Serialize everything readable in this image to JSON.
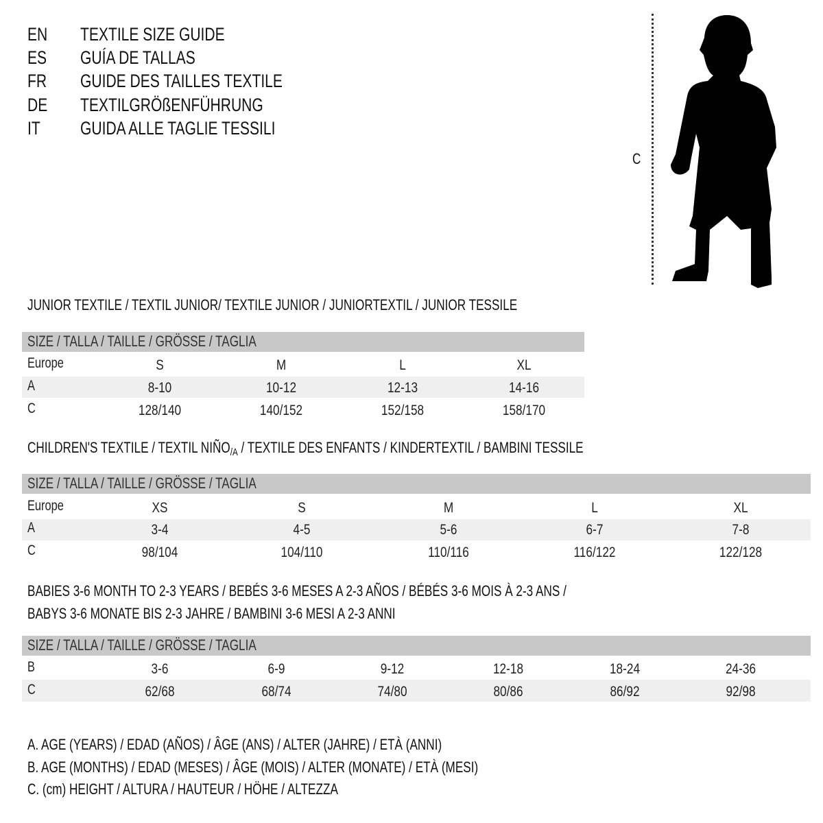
{
  "languages": [
    {
      "code": "EN",
      "title": "TEXTILE SIZE GUIDE"
    },
    {
      "code": "ES",
      "title": "GUÍA DE TALLAS"
    },
    {
      "code": "FR",
      "title": "GUIDE DES TAILLES TEXTILE"
    },
    {
      "code": "DE",
      "title": "TEXTILGRÖßENFÜHRUNG"
    },
    {
      "code": "IT",
      "title": "GUIDA ALLE TAGLIE TESSILI"
    }
  ],
  "figure": {
    "measure_label": "C",
    "icon": "child-silhouette"
  },
  "size_header": "SIZE / TALLA / TAILLE / GRÖSSE / TAGLIA",
  "junior": {
    "title": "JUNIOR TEXTILE / TEXTIL JUNIOR/ TEXTILE JUNIOR / JUNIORTEXTIL / JUNIOR TESSILE",
    "rows": [
      {
        "label": "Europe",
        "values": [
          "S",
          "M",
          "L",
          "XL"
        ]
      },
      {
        "label": "A",
        "values": [
          "8-10",
          "10-12",
          "12-13",
          "14-16"
        ]
      },
      {
        "label": "C",
        "values": [
          "128/140",
          "140/152",
          "152/158",
          "158/170"
        ]
      }
    ]
  },
  "children": {
    "title_a": "CHILDREN'S TEXTILE / TEXTIL NIÑO",
    "title_sub": "/A",
    "title_b": " / TEXTILE DES ENFANTS / KINDERTEXTIL / BAMBINI TESSILE",
    "rows": [
      {
        "label": "Europe",
        "values": [
          "XS",
          "S",
          "M",
          "L",
          "XL"
        ]
      },
      {
        "label": "A",
        "values": [
          "3-4",
          "4-5",
          "5-6",
          "6-7",
          "7-8"
        ]
      },
      {
        "label": "C",
        "values": [
          "98/104",
          "104/110",
          "110/116",
          "116/122",
          "122/128"
        ]
      }
    ]
  },
  "babies": {
    "title_line1": "BABIES 3-6 MONTH TO 2-3 YEARS / BEBÉS 3-6 MESES A 2-3 AÑOS / BÉBÉS 3-6 MOIS À 2-3 ANS /",
    "title_line2": "BABYS 3-6 MONATE BIS 2-3 JAHRE / BAMBINI 3-6 MESI A 2-3 ANNI",
    "rows": [
      {
        "label": "B",
        "values": [
          "3-6",
          "6-9",
          "9-12",
          "12-18",
          "18-24",
          "24-36"
        ]
      },
      {
        "label": "C",
        "values": [
          "62/68",
          "68/74",
          "74/80",
          "80/86",
          "86/92",
          "92/98"
        ]
      }
    ]
  },
  "legend": [
    "A. AGE (YEARS) / EDAD (AÑOS) / ÂGE (ANS) / ALTER (JAHRE) / ETÀ (ANNI)",
    "B. AGE (MONTHS) / EDAD (MESES) / ÂGE (MOIS) / ALTER (MONATE) / ETÀ (MESI)",
    "C. (cm) HEIGHT / ALTURA / HAUTEUR / HÖHE / ALTEZZA"
  ],
  "colors": {
    "header_bar": "#c8c8c8",
    "row_band": "#efefef",
    "text": "#111111"
  }
}
